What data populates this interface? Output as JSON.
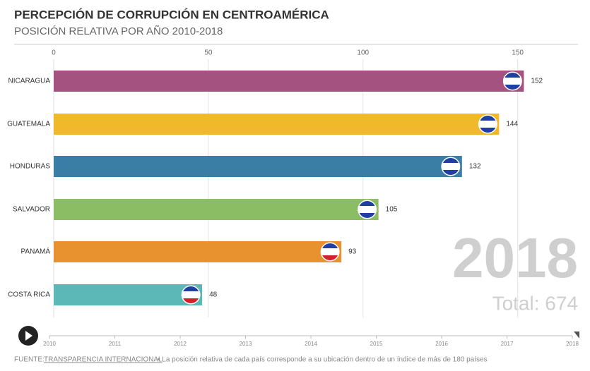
{
  "chart_data": {
    "type": "bar",
    "title": "PERCEPCIÓN DE CORRUPCIÓN EN CENTROAMÉRICA",
    "subtitle": "POSICIÓN RELATIVA POR AÑO 2010-2018",
    "categories": [
      "NICARAGUA",
      "GUATEMALA",
      "HONDURAS",
      "SALVADOR",
      "PANAMÁ",
      "COSTA RICA"
    ],
    "values": [
      152,
      144,
      132,
      105,
      93,
      48
    ],
    "colors": [
      "#a4527f",
      "#f0b92c",
      "#3b7ea5",
      "#8bbd64",
      "#e8922f",
      "#5cb8b7"
    ],
    "xlim": [
      0,
      169.5
    ],
    "xticks": [
      0,
      50,
      100,
      150
    ],
    "grid": true,
    "year_label": "2018",
    "total_label": "Total: 674",
    "timeline": {
      "xlim": [
        2010,
        2018
      ],
      "xticks": [
        2010,
        2011,
        2012,
        2013,
        2014,
        2015,
        2016,
        2017,
        2018
      ]
    },
    "source_prefix": "FUENTE:",
    "source_link": "TRANSPARENCIA INTERNACIONAL",
    "source_note": "• La posición relativa de cada país corresponde a su ubicación dentro de un índice de más de 180 países"
  }
}
